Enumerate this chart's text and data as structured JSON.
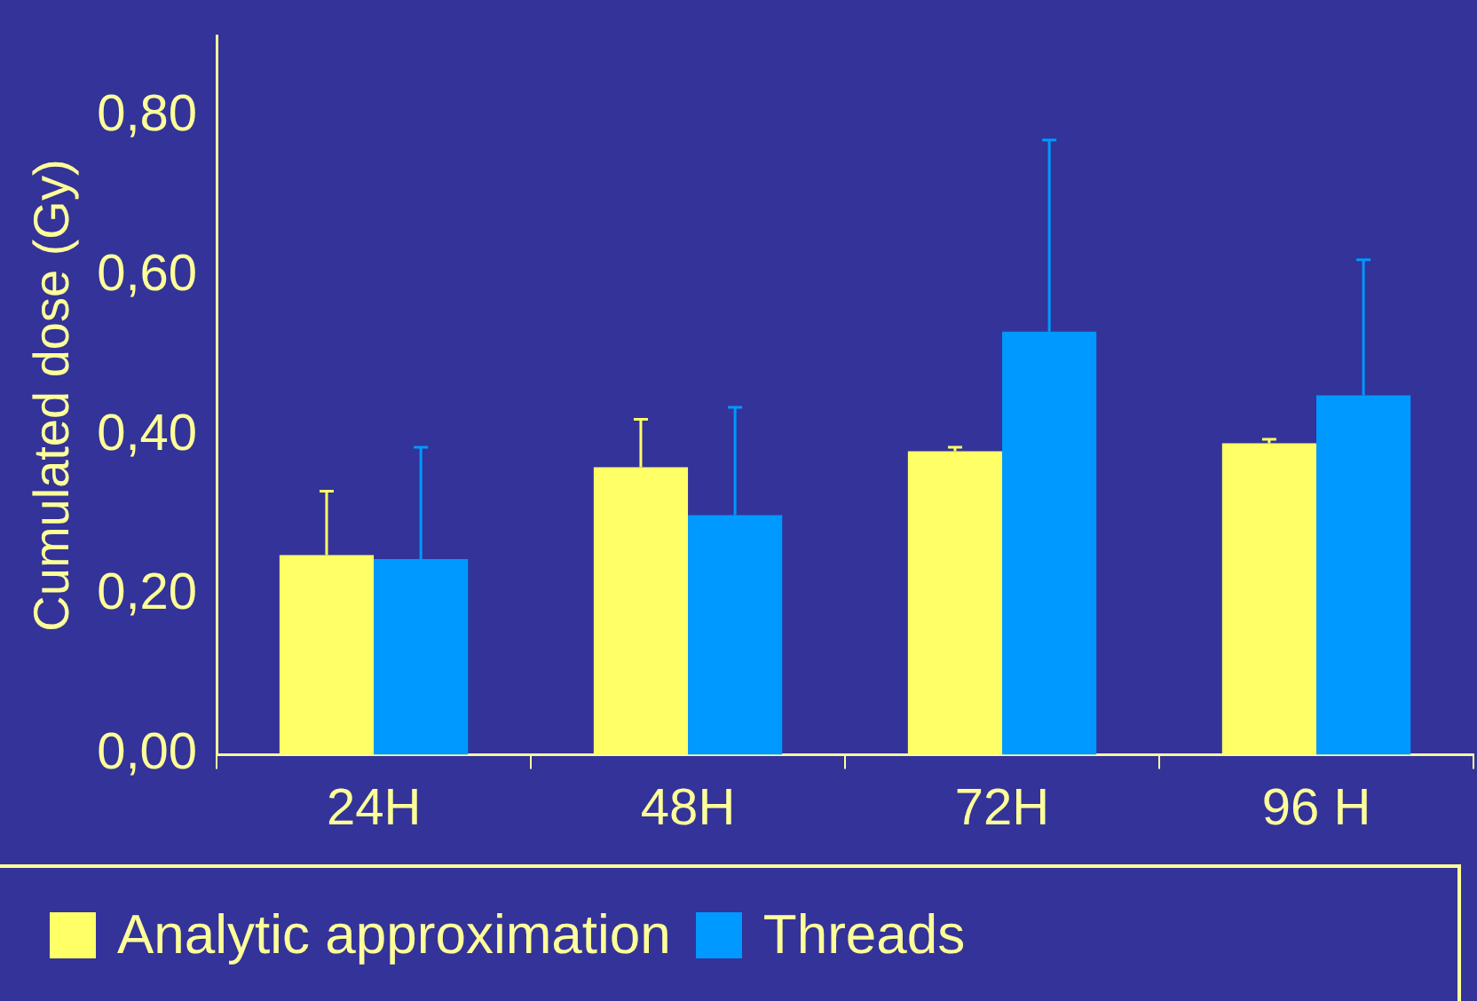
{
  "chart_data": {
    "type": "bar",
    "ylabel": "Cumulated dose (Gy)",
    "categories": [
      "24H",
      "48H",
      "72H",
      "96 H"
    ],
    "series": [
      {
        "name": "Analytic approximation",
        "color": "#ffff66",
        "values": [
          0.25,
          0.36,
          0.38,
          0.39
        ],
        "errors": [
          [
            0.25,
            0.33
          ],
          [
            0.36,
            0.42
          ],
          [
            0.38,
            0.385
          ],
          [
            0.39,
            0.395
          ]
        ]
      },
      {
        "name": "Threads",
        "color": "#0099ff",
        "values": [
          0.245,
          0.3,
          0.53,
          0.45
        ],
        "errors": [
          [
            0.245,
            0.385
          ],
          [
            0.3,
            0.435
          ],
          [
            0.53,
            0.77
          ],
          [
            0.45,
            0.62
          ]
        ]
      }
    ],
    "ylim": [
      0,
      0.9
    ],
    "yticks": [
      {
        "value": 0,
        "label": "0,00"
      },
      {
        "value": 0.2,
        "label": "0,20"
      },
      {
        "value": 0.4,
        "label": "0,40"
      },
      {
        "value": 0.6,
        "label": "0,60"
      },
      {
        "value": 0.8,
        "label": "0,80"
      }
    ],
    "grid": false,
    "legend": "bottom"
  }
}
